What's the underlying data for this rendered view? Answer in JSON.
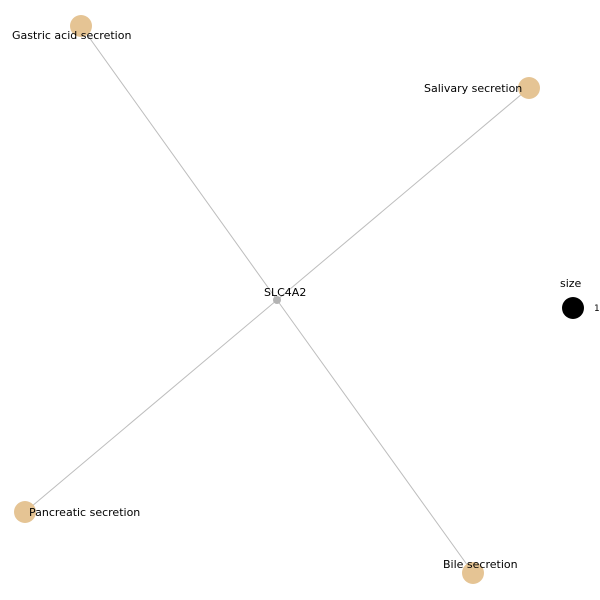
{
  "network": {
    "center": {
      "id": "gene",
      "label": "SLC4A2",
      "color": "#b3b3b3"
    },
    "pathways": [
      {
        "id": "gastric",
        "label": "Gastric acid secretion",
        "color": "#e5c494"
      },
      {
        "id": "salivary",
        "label": "Salivary secretion",
        "color": "#e5c494"
      },
      {
        "id": "pancreatic",
        "label": "Pancreatic secretion",
        "color": "#e5c494"
      },
      {
        "id": "bile",
        "label": "Bile secretion",
        "color": "#e5c494"
      }
    ],
    "edges": [
      {
        "source": "gene",
        "target": "gastric"
      },
      {
        "source": "gene",
        "target": "salivary"
      },
      {
        "source": "gene",
        "target": "pancreatic"
      },
      {
        "source": "gene",
        "target": "bile"
      }
    ]
  },
  "legend": {
    "title": "size",
    "value_label": "1",
    "marker_color": "#000000"
  }
}
